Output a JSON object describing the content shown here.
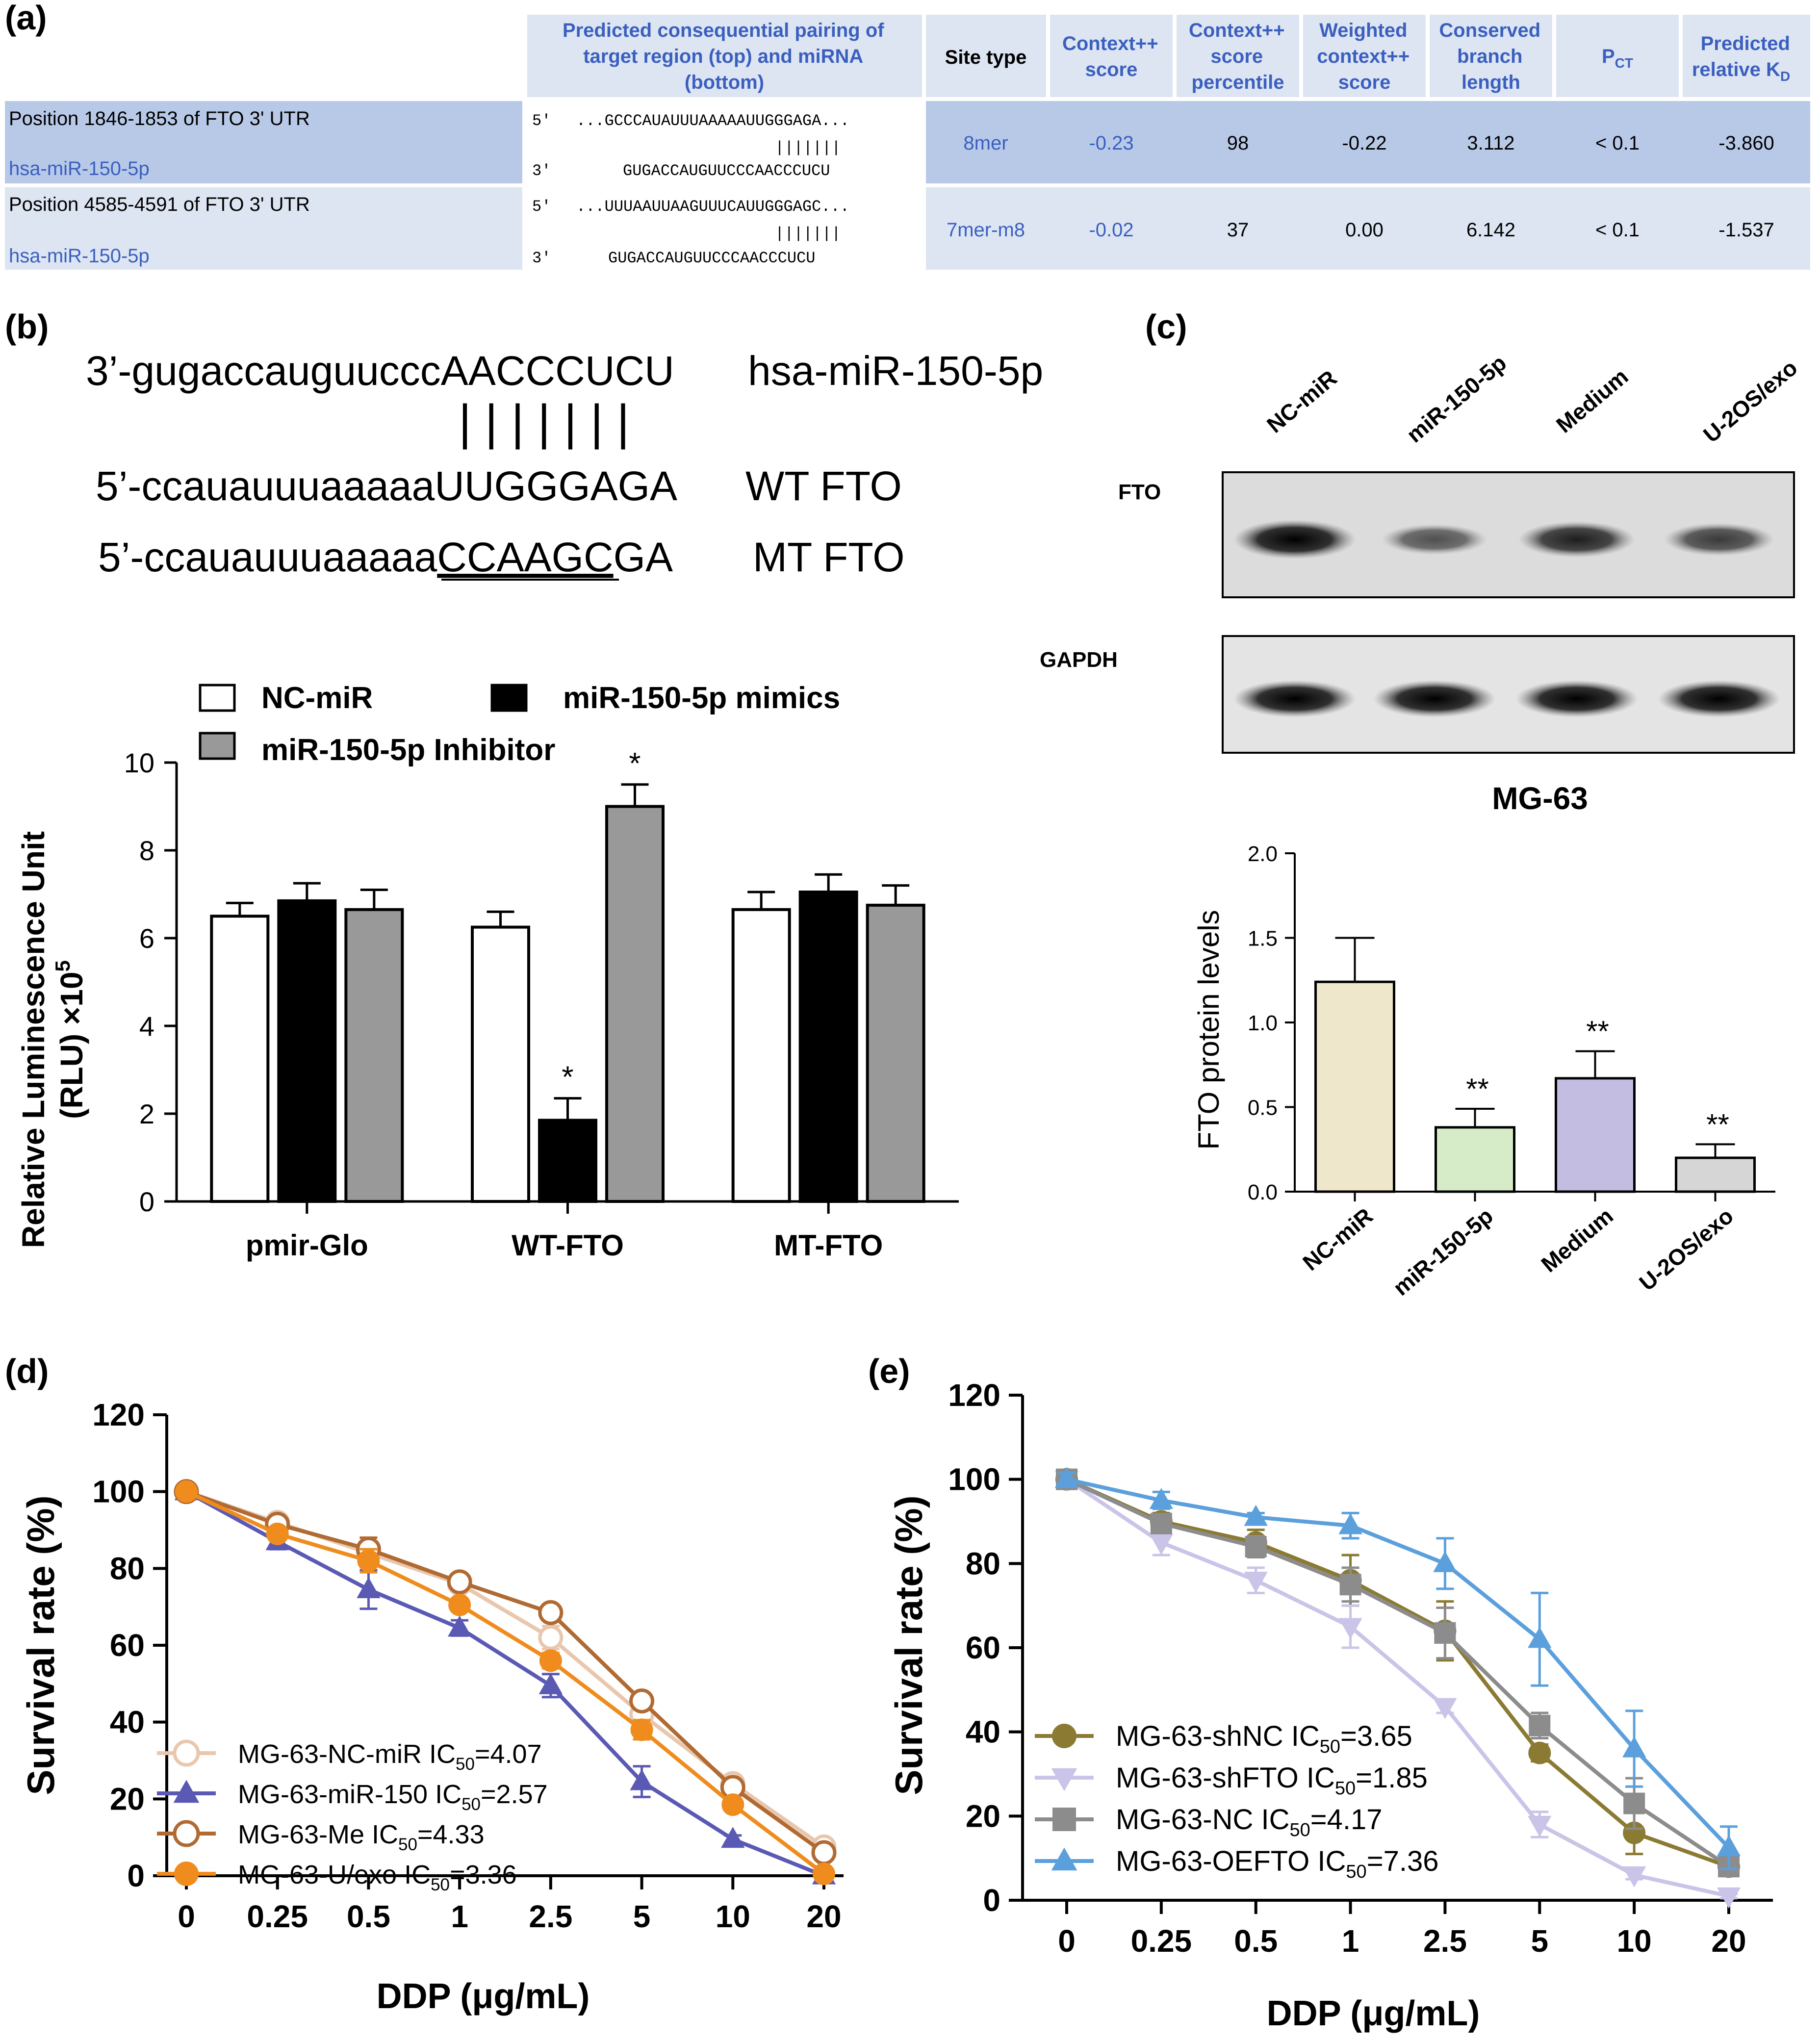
{
  "panels": {
    "a": "(a)",
    "b": "(b)",
    "c": "(c)",
    "d": "(d)",
    "e": "(e)"
  },
  "table": {
    "headers": {
      "pairing": [
        "Predicted consequential pairing of",
        "target region (top) and miRNA",
        "(bottom)"
      ],
      "site_type": "Site type",
      "context_score": [
        "Context++",
        "score"
      ],
      "context_percentile": [
        "Context++",
        "score",
        "percentile"
      ],
      "weighted": [
        "Weighted",
        "context++",
        "score"
      ],
      "conserved": [
        "Conserved",
        "branch",
        "length"
      ],
      "pct": "P",
      "pct_sub": "CT",
      "kd": [
        "Predicted",
        "relative K"
      ],
      "kd_sub": "D"
    },
    "rows": [
      {
        "position": "Position 1846-1853 of FTO 3' UTR",
        "mirna": "hsa-miR-150-5p",
        "five": "5'",
        "three": "3'",
        "target_seq": "...GCCCAUAUUUAAAAAUUGGGAGA...",
        "bars": "|||||||",
        "mirna_seq": "GUGACCAUGUUCCCAACCCUCU",
        "site_type": "8mer",
        "context_score": "-0.23",
        "percentile": "98",
        "weighted": "-0.22",
        "branch": "3.112",
        "pct": "< 0.1",
        "kd": "-3.860"
      },
      {
        "position": "Position 4585-4591 of FTO 3' UTR",
        "mirna": "hsa-miR-150-5p",
        "five": "5'",
        "three": "3'",
        "target_seq": "...UUUAAUUAAGUUUCAUUGGGAGC...",
        "bars": "|||||||",
        "mirna_seq": "GUGACCAUGUUCCCAACCCUCU",
        "site_type": "7mer-m8",
        "context_score": "-0.02",
        "percentile": "37",
        "weighted": "0.00",
        "branch": "6.142",
        "pct": "< 0.1",
        "kd": "-1.537"
      }
    ]
  },
  "seq_b": {
    "mirna_line": "3’-gugaccauguucccAACCCUCU",
    "mirna_label": "hsa-miR-150-5p",
    "bars": "| | | | | | |",
    "wt_line": "5’-ccauauuuaaaaaUUGGGAGA",
    "wt_label": "WT FTO",
    "mt_prefix": "5’-ccauauuuaaaaa",
    "mt_mut": "CCAAGC",
    "mt_suffix": "GA",
    "mt_label": "MT FTO"
  },
  "blot": {
    "lanes": [
      "NC-miR",
      "miR-150-5p",
      "Medium",
      "U-2OS/exo"
    ],
    "protein1": "FTO",
    "protein2": "GAPDH",
    "fto_intensity": [
      1.0,
      0.45,
      0.8,
      0.6
    ],
    "gapdh_intensity": [
      1.0,
      1.0,
      1.0,
      1.0
    ]
  },
  "chart_data": [
    {
      "id": "b",
      "type": "bar",
      "categories": [
        "pmir-Glo",
        "WT-FTO",
        "MT-FTO"
      ],
      "series": [
        {
          "name": "NC-miR",
          "color": "#ffffff",
          "values": [
            6.5,
            6.25,
            6.65
          ],
          "errors": [
            0.3,
            0.35,
            0.4
          ],
          "stars": [
            "",
            "",
            ""
          ]
        },
        {
          "name": "miR-150-5p mimics",
          "color": "#000000",
          "values": [
            6.85,
            1.85,
            7.05
          ],
          "errors": [
            0.4,
            0.5,
            0.4
          ],
          "stars": [
            "",
            "*",
            ""
          ]
        },
        {
          "name": "miR-150-5p Inhibitor",
          "color": "#999999",
          "values": [
            6.65,
            9.0,
            6.75
          ],
          "errors": [
            0.45,
            0.5,
            0.45
          ],
          "stars": [
            "",
            "*",
            ""
          ]
        }
      ],
      "ylabel_lines": [
        "Relative Luminescence Unit",
        "(RLU) ×10"
      ],
      "ylabel_sup": "5",
      "ylim": [
        0,
        10
      ],
      "yticks": [
        "0",
        "2",
        "4",
        "6",
        "8",
        "10"
      ],
      "xlabel": "",
      "title": ""
    },
    {
      "id": "c",
      "type": "bar",
      "title": "MG-63",
      "categories": [
        "NC-miR",
        "miR-150-5p",
        "Medium",
        "U-2OS/exo"
      ],
      "values": [
        1.24,
        0.38,
        0.67,
        0.2
      ],
      "errors": [
        0.26,
        0.11,
        0.16,
        0.08
      ],
      "colors": [
        "#efe7cc",
        "#d6ecc9",
        "#c3bde2",
        "#d6d6d6"
      ],
      "stars": [
        "",
        "**",
        "**",
        "**"
      ],
      "ylabel": "FTO protein levels",
      "ylim": [
        0,
        2.0
      ],
      "yticks": [
        "0.0",
        "0.5",
        "1.0",
        "1.5",
        "2.0"
      ],
      "xlabel": ""
    },
    {
      "id": "d",
      "type": "line",
      "x": [
        "0",
        "0.25",
        "0.5",
        "1",
        "2.5",
        "5",
        "10",
        "20"
      ],
      "xlabel": "DDP (μg/mL)",
      "ylabel": "Survival rate (%)",
      "ylim": [
        0,
        120
      ],
      "yticks": [
        "0",
        "20",
        "40",
        "60",
        "80",
        "100",
        "120"
      ],
      "series": [
        {
          "name": "MG-63-NC-miR IC",
          "sub": "50",
          "ic50": "=4.07",
          "color": "#e8c7ae",
          "marker": "circle-open",
          "values": [
            100,
            92,
            84,
            76,
            62,
            42,
            24,
            7.5
          ],
          "errors": [
            1.5,
            1.5,
            3,
            2,
            3,
            3,
            2,
            1.5
          ]
        },
        {
          "name": "MG-63-miR-150 IC",
          "sub": "50",
          "ic50": "=2.57",
          "color": "#5a5ab4",
          "marker": "triangle",
          "values": [
            100,
            87,
            74.5,
            64.5,
            49.5,
            24.5,
            9.5,
            0
          ],
          "errors": [
            1,
            2,
            5,
            2,
            3,
            4,
            1,
            0.5
          ]
        },
        {
          "name": "MG-63-Me IC",
          "sub": "50",
          "ic50": "=4.33",
          "color": "#b06a32",
          "marker": "circle-open",
          "values": [
            100,
            91.5,
            85,
            76.5,
            68.5,
            45.5,
            23,
            6
          ],
          "errors": [
            1,
            1.5,
            3,
            1.5,
            2,
            2,
            1.5,
            1
          ]
        },
        {
          "name": "MG-63-U/exo IC",
          "sub": "50",
          "ic50": "=3.36",
          "color": "#f08c1e",
          "marker": "circle",
          "values": [
            100,
            89,
            82,
            70.5,
            56,
            38,
            18.5,
            0.5
          ],
          "errors": [
            1,
            1.5,
            3,
            1.5,
            2,
            2.5,
            1.5,
            0.5
          ]
        }
      ]
    },
    {
      "id": "e",
      "type": "line",
      "x": [
        "0",
        "0.25",
        "0.5",
        "1",
        "2.5",
        "5",
        "10",
        "20"
      ],
      "xlabel": "DDP (μg/mL)",
      "ylabel": "Survival rate (%)",
      "ylim": [
        0,
        120
      ],
      "yticks": [
        "0",
        "20",
        "40",
        "60",
        "80",
        "100",
        "120"
      ],
      "series": [
        {
          "name": "MG-63-shNC IC",
          "sub": "50",
          "ic50": "=3.65",
          "color": "#8a7a32",
          "marker": "circle",
          "values": [
            100,
            90,
            85,
            76,
            64,
            35,
            16,
            8
          ],
          "errors": [
            1,
            2,
            3,
            6,
            7,
            2,
            5,
            1.5
          ]
        },
        {
          "name": "MG-63-shFTO IC",
          "sub": "50",
          "ic50": "=1.85",
          "color": "#c9c4e8",
          "marker": "triangle-down",
          "values": [
            100,
            85,
            76,
            65,
            46,
            18,
            6,
            1
          ],
          "errors": [
            1.5,
            3,
            3,
            5,
            1.5,
            3,
            1,
            0.5
          ]
        },
        {
          "name": "MG-63-NC IC",
          "sub": "50",
          "ic50": "=4.17",
          "color": "#8c8c8c",
          "marker": "square",
          "values": [
            100,
            89.5,
            84,
            75,
            63.5,
            41.5,
            23,
            8
          ],
          "errors": [
            1,
            2,
            2.5,
            4,
            6,
            3,
            6,
            1
          ]
        },
        {
          "name": "MG-63-OEFTO IC",
          "sub": "50",
          "ic50": "=7.36",
          "color": "#5ba0dc",
          "marker": "triangle",
          "values": [
            100,
            95,
            91,
            89,
            80,
            62,
            36,
            12.5
          ],
          "errors": [
            1.5,
            2,
            1,
            3,
            6,
            11,
            9,
            5
          ]
        }
      ]
    }
  ]
}
